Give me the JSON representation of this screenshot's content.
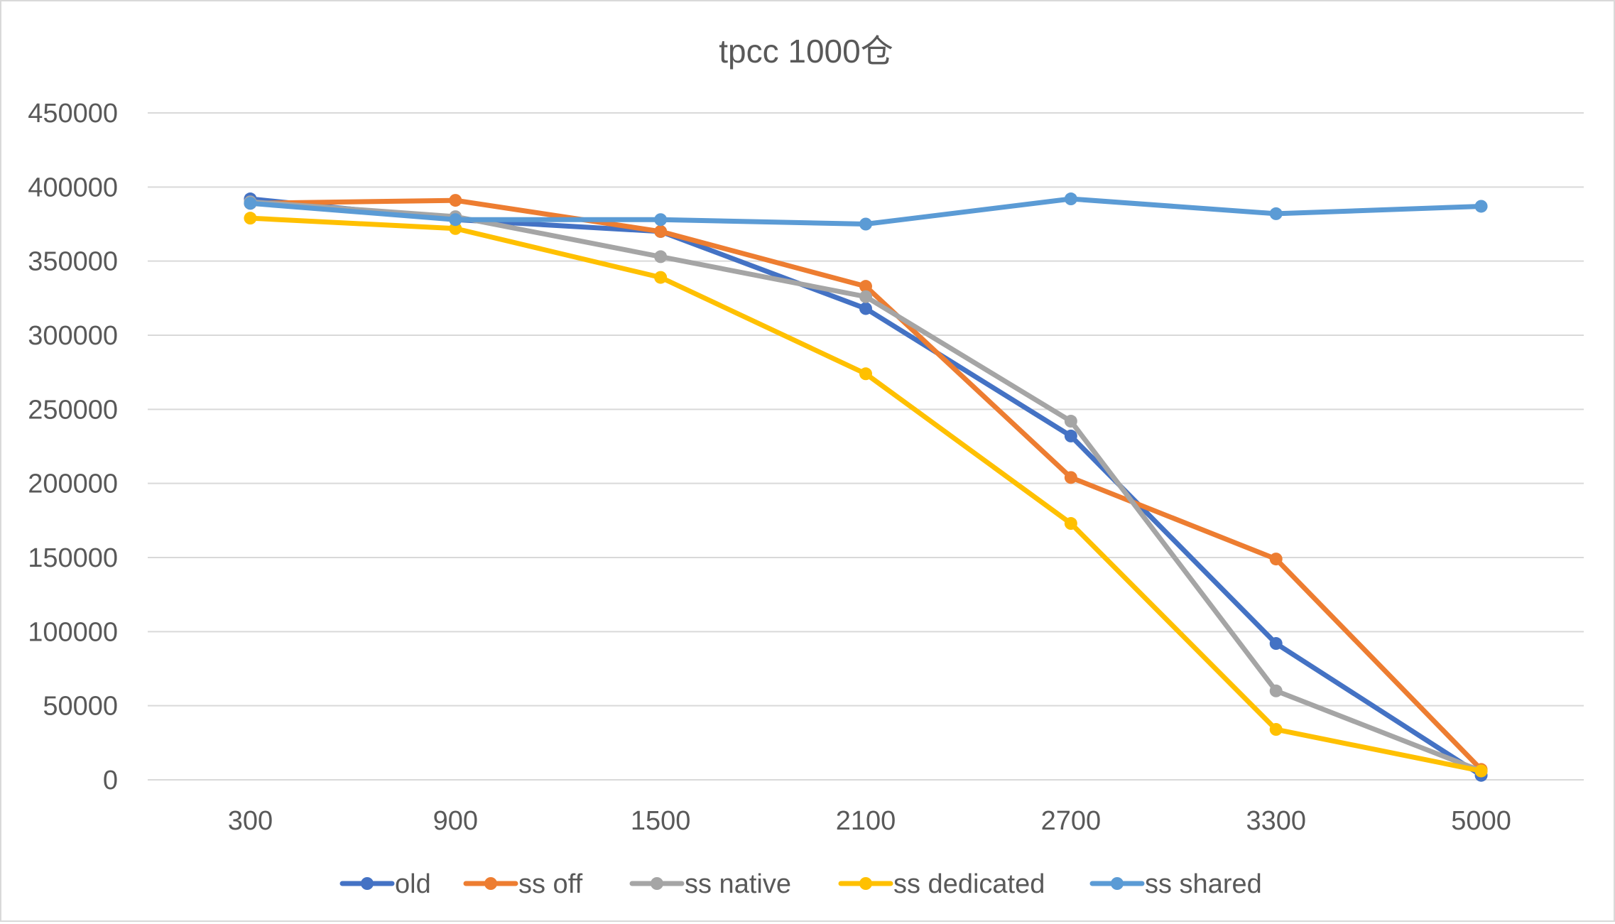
{
  "chart_data": {
    "type": "line",
    "title": "tpcc 1000仓",
    "xlabel": "",
    "ylabel": "",
    "categories": [
      "300",
      "900",
      "1500",
      "2100",
      "2700",
      "3300",
      "5000"
    ],
    "ylim": [
      0,
      450000
    ],
    "yticks": [
      0,
      50000,
      100000,
      150000,
      200000,
      250000,
      300000,
      350000,
      400000,
      450000
    ],
    "yticklabels": [
      "0",
      "50000",
      "100000",
      "150000",
      "200000",
      "250000",
      "300000",
      "350000",
      "400000",
      "450000"
    ],
    "grid": true,
    "legend_position": "bottom",
    "series": [
      {
        "name": "old",
        "color": "#4472c4",
        "values": [
          392000,
          378000,
          370000,
          318000,
          232000,
          92000,
          3000
        ]
      },
      {
        "name": "ss off",
        "color": "#ed7d31",
        "values": [
          389000,
          391000,
          370000,
          333000,
          204000,
          149000,
          7000
        ]
      },
      {
        "name": "ss native",
        "color": "#a5a5a5",
        "values": [
          390000,
          380000,
          353000,
          326000,
          242000,
          60000,
          6000
        ]
      },
      {
        "name": "ss dedicated",
        "color": "#ffc000",
        "values": [
          379000,
          372000,
          339000,
          274000,
          173000,
          34000,
          6000
        ]
      },
      {
        "name": "ss shared",
        "color": "#5b9bd5",
        "values": [
          389000,
          378000,
          378000,
          375000,
          392000,
          382000,
          387000
        ]
      }
    ]
  }
}
